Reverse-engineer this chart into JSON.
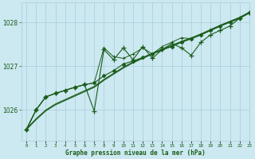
{
  "title": "Graphe pression niveau de la mer (hPa)",
  "background_color": "#cce8f0",
  "grid_color": "#aaccdd",
  "line_color": "#1a5c1a",
  "xlim": [
    -0.5,
    23
  ],
  "ylim": [
    1025.3,
    1028.45
  ],
  "yticks": [
    1026,
    1027,
    1028
  ],
  "hours": [
    0,
    1,
    2,
    3,
    4,
    5,
    6,
    7,
    8,
    9,
    10,
    11,
    12,
    13,
    14,
    15,
    16,
    17,
    18,
    19,
    20,
    21,
    22,
    23
  ],
  "pressure_smooth": [
    1025.55,
    1025.78,
    1025.98,
    1026.12,
    1026.22,
    1026.32,
    1026.42,
    1026.52,
    1026.68,
    1026.82,
    1026.96,
    1027.08,
    1027.18,
    1027.28,
    1027.37,
    1027.46,
    1027.55,
    1027.63,
    1027.72,
    1027.82,
    1027.92,
    1028.01,
    1028.1,
    1028.22
  ],
  "pressure_main": [
    1025.55,
    1026.0,
    1026.3,
    1026.38,
    1026.45,
    1026.52,
    1026.58,
    1026.62,
    1026.78,
    1026.9,
    1027.05,
    1027.12,
    1027.2,
    1027.28,
    1027.38,
    1027.45,
    1027.55,
    1027.63,
    1027.72,
    1027.82,
    1027.92,
    1028.01,
    1028.1,
    1028.22
  ],
  "pressure_spiky": [
    1025.55,
    1026.0,
    1026.3,
    1026.38,
    1026.45,
    1026.52,
    1026.58,
    1025.98,
    1027.38,
    1027.15,
    1027.42,
    1027.15,
    1027.45,
    1027.18,
    1027.38,
    1027.52,
    1027.42,
    1027.25,
    1027.55,
    1027.72,
    1027.82,
    1027.92,
    1028.1,
    1028.22
  ],
  "pressure_upper": [
    1025.55,
    1026.0,
    1026.3,
    1026.38,
    1026.45,
    1026.52,
    1026.58,
    1026.62,
    1027.42,
    1027.22,
    1027.18,
    1027.28,
    1027.42,
    1027.28,
    1027.45,
    1027.55,
    1027.65,
    1027.63,
    1027.72,
    1027.82,
    1027.92,
    1028.01,
    1028.1,
    1028.22
  ]
}
